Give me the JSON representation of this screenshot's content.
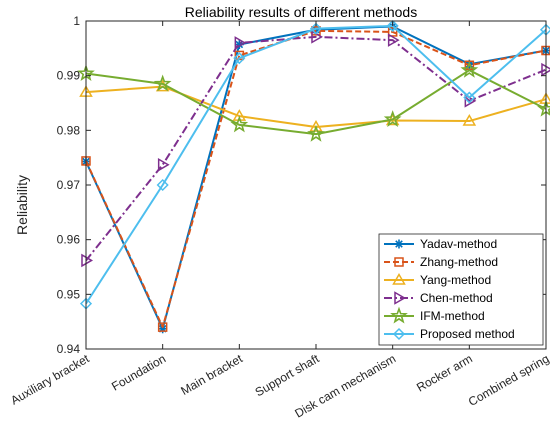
{
  "chart_data": {
    "type": "line",
    "title": "Reliability results of different methods",
    "xlabel": "",
    "ylabel": "Reliability",
    "categories": [
      "Auxiliary bracket",
      "Foundation",
      "Main bracket",
      "Support shaft",
      "Disk cam mechanism",
      "Rocker arm",
      "Combined spring"
    ],
    "ylim": [
      0.94,
      1.0
    ],
    "yticks": [
      0.94,
      0.95,
      0.96,
      0.97,
      0.98,
      0.99,
      1.0
    ],
    "ytick_labels": [
      "0.94",
      "0.95",
      "0.96",
      "0.97",
      "0.98",
      "0.99",
      "1"
    ],
    "grid": false,
    "legend_position": "bottom-right",
    "series": [
      {
        "name": "Yadav-method",
        "color": "#0072BD",
        "marker": "asterisk",
        "dash": "solid",
        "values": [
          0.9743,
          0.9437,
          0.9957,
          0.9984,
          0.999,
          0.9921,
          0.9946
        ]
      },
      {
        "name": "Zhang-method",
        "color": "#D95319",
        "marker": "square",
        "dash": "dashed",
        "values": [
          0.9744,
          0.944,
          0.9937,
          0.9982,
          0.998,
          0.9919,
          0.9946
        ]
      },
      {
        "name": "Yang-method",
        "color": "#EDB120",
        "marker": "triangle-up",
        "dash": "solid",
        "values": [
          0.987,
          0.988,
          0.9826,
          0.9806,
          0.9818,
          0.9817,
          0.9857
        ]
      },
      {
        "name": "Chen-method",
        "color": "#7E2F8E",
        "marker": "triangle-right",
        "dash": "dashdot",
        "values": [
          0.9562,
          0.9737,
          0.996,
          0.9971,
          0.9965,
          0.9854,
          0.9911
        ]
      },
      {
        "name": "IFM-method",
        "color": "#77AC30",
        "marker": "pentagram",
        "dash": "solid",
        "values": [
          0.9904,
          0.9885,
          0.981,
          0.9793,
          0.982,
          0.991,
          0.9839
        ]
      },
      {
        "name": "Proposed method",
        "color": "#4DBEEE",
        "marker": "diamond",
        "dash": "solid",
        "values": [
          0.9483,
          0.97,
          0.9932,
          0.9986,
          0.9991,
          0.986,
          0.9984
        ]
      }
    ]
  }
}
